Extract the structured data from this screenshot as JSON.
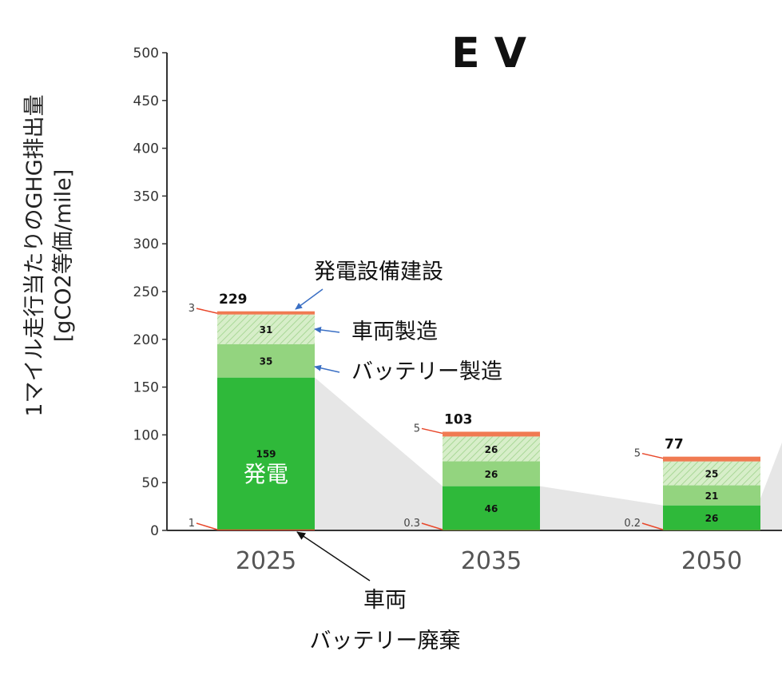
{
  "chart_data": {
    "type": "bar",
    "stacked": true,
    "title": "E V",
    "ylabel_line1": "1マイル走行当たりのGHG排出量",
    "ylabel_line2": "[gCO2等価/mile]",
    "ylim": [
      0,
      500
    ],
    "yticks": [
      "0",
      "50",
      "100",
      "150",
      "200",
      "250",
      "300",
      "350",
      "400",
      "450",
      "500"
    ],
    "categories": [
      "2025",
      "2035",
      "2050"
    ],
    "series": [
      {
        "key": "disposal",
        "values": [
          1,
          0.3,
          0.2
        ],
        "labels": [
          "1",
          "0.3",
          "0.2"
        ],
        "color": "#e8472a"
      },
      {
        "key": "generation",
        "values": [
          159,
          46,
          26
        ],
        "labels": [
          "159",
          "46",
          "26"
        ],
        "color": "#2fb93a"
      },
      {
        "key": "battery",
        "values": [
          35,
          26,
          21
        ],
        "labels": [
          "35",
          "26",
          "21"
        ],
        "color": "#93d47f"
      },
      {
        "key": "vehicle",
        "values": [
          31,
          26,
          25
        ],
        "labels": [
          "31",
          "26",
          "25"
        ],
        "color": "#cbe8bb"
      },
      {
        "key": "plant",
        "values": [
          3,
          5,
          5
        ],
        "labels": [
          "3",
          "5",
          "5"
        ],
        "color": "#f07a52"
      }
    ],
    "totals": [
      "229",
      "103",
      "77"
    ],
    "grid": false,
    "annotations": {
      "plant": "発電設備建設",
      "vehicle": "車両製造",
      "battery": "バッテリー製造",
      "generation": "発電",
      "disposal_line1": "車両",
      "disposal_line2": "バッテリー廃棄"
    }
  }
}
